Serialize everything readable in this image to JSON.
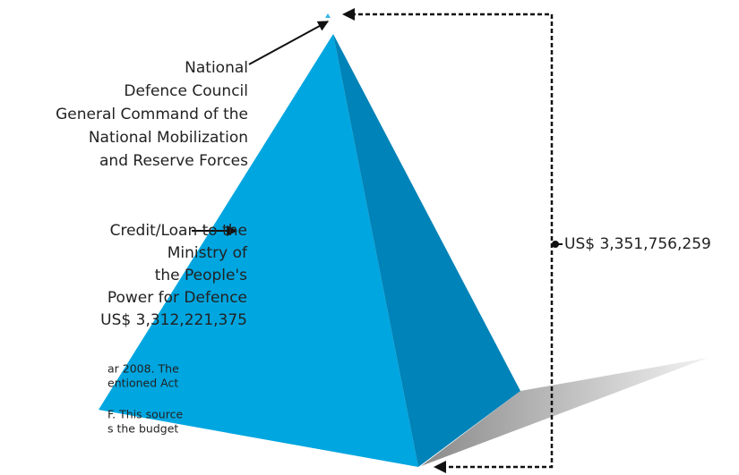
{
  "top_label": {
    "lines": [
      "National",
      "Defence Council",
      "General Command of the",
      "National Mobilization",
      "and Reserve Forces"
    ]
  },
  "base_label": {
    "lines": [
      "Credit/Loan to the",
      "Ministry of",
      "the People's",
      "Power for Defence",
      "US$ 3,312,221,375"
    ]
  },
  "total_label": "US$ 3,351,756,259",
  "footnote_fragments": [
    "ar 2008. The",
    "entioned Act",
    "F. This source",
    "s the budget"
  ]
}
